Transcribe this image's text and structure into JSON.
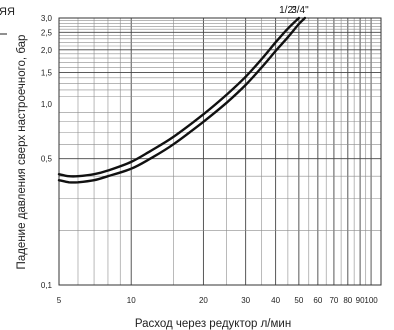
{
  "crop_fragment": "ЯЯ",
  "chart_data": {
    "type": "line",
    "title": "",
    "xlabel": "Расход через редуктор л/мин",
    "ylabel": "Падение давления сверх настроечного, бар",
    "x_scale": "log",
    "y_scale": "log",
    "xlim": [
      5,
      110
    ],
    "ylim": [
      0.1,
      3.0
    ],
    "grid": true,
    "x_ticks": [
      5,
      10,
      20,
      30,
      40,
      50,
      60,
      70,
      80,
      90,
      100
    ],
    "x_tick_labels": [
      "5",
      "10",
      "20",
      "30",
      "40",
      "50",
      "60",
      "70",
      "80",
      "90",
      "100"
    ],
    "y_ticks": [
      0.1,
      0.5,
      1.0,
      1.5,
      2.0,
      2.5,
      3.0
    ],
    "y_tick_labels": [
      "0,1",
      "0,5",
      "1,0",
      "1,5",
      "2,0",
      "2,5",
      "3,0"
    ],
    "series": [
      {
        "name": "1/2\"",
        "color": "#111111",
        "x": [
          5,
          5.5,
          6,
          7,
          8,
          10,
          12,
          15,
          20,
          25,
          30,
          35,
          40,
          45,
          50
        ],
        "y": [
          0.41,
          0.4,
          0.4,
          0.41,
          0.43,
          0.48,
          0.55,
          0.66,
          0.88,
          1.13,
          1.42,
          1.78,
          2.2,
          2.62,
          3.0
        ]
      },
      {
        "name": "3/4\"",
        "color": "#111111",
        "x": [
          5,
          5.5,
          6,
          7,
          8,
          10,
          12,
          15,
          20,
          25,
          30,
          35,
          40,
          45,
          50,
          53
        ],
        "y": [
          0.38,
          0.37,
          0.37,
          0.38,
          0.4,
          0.44,
          0.5,
          0.6,
          0.8,
          1.02,
          1.28,
          1.6,
          1.97,
          2.35,
          2.78,
          3.0
        ]
      }
    ]
  }
}
